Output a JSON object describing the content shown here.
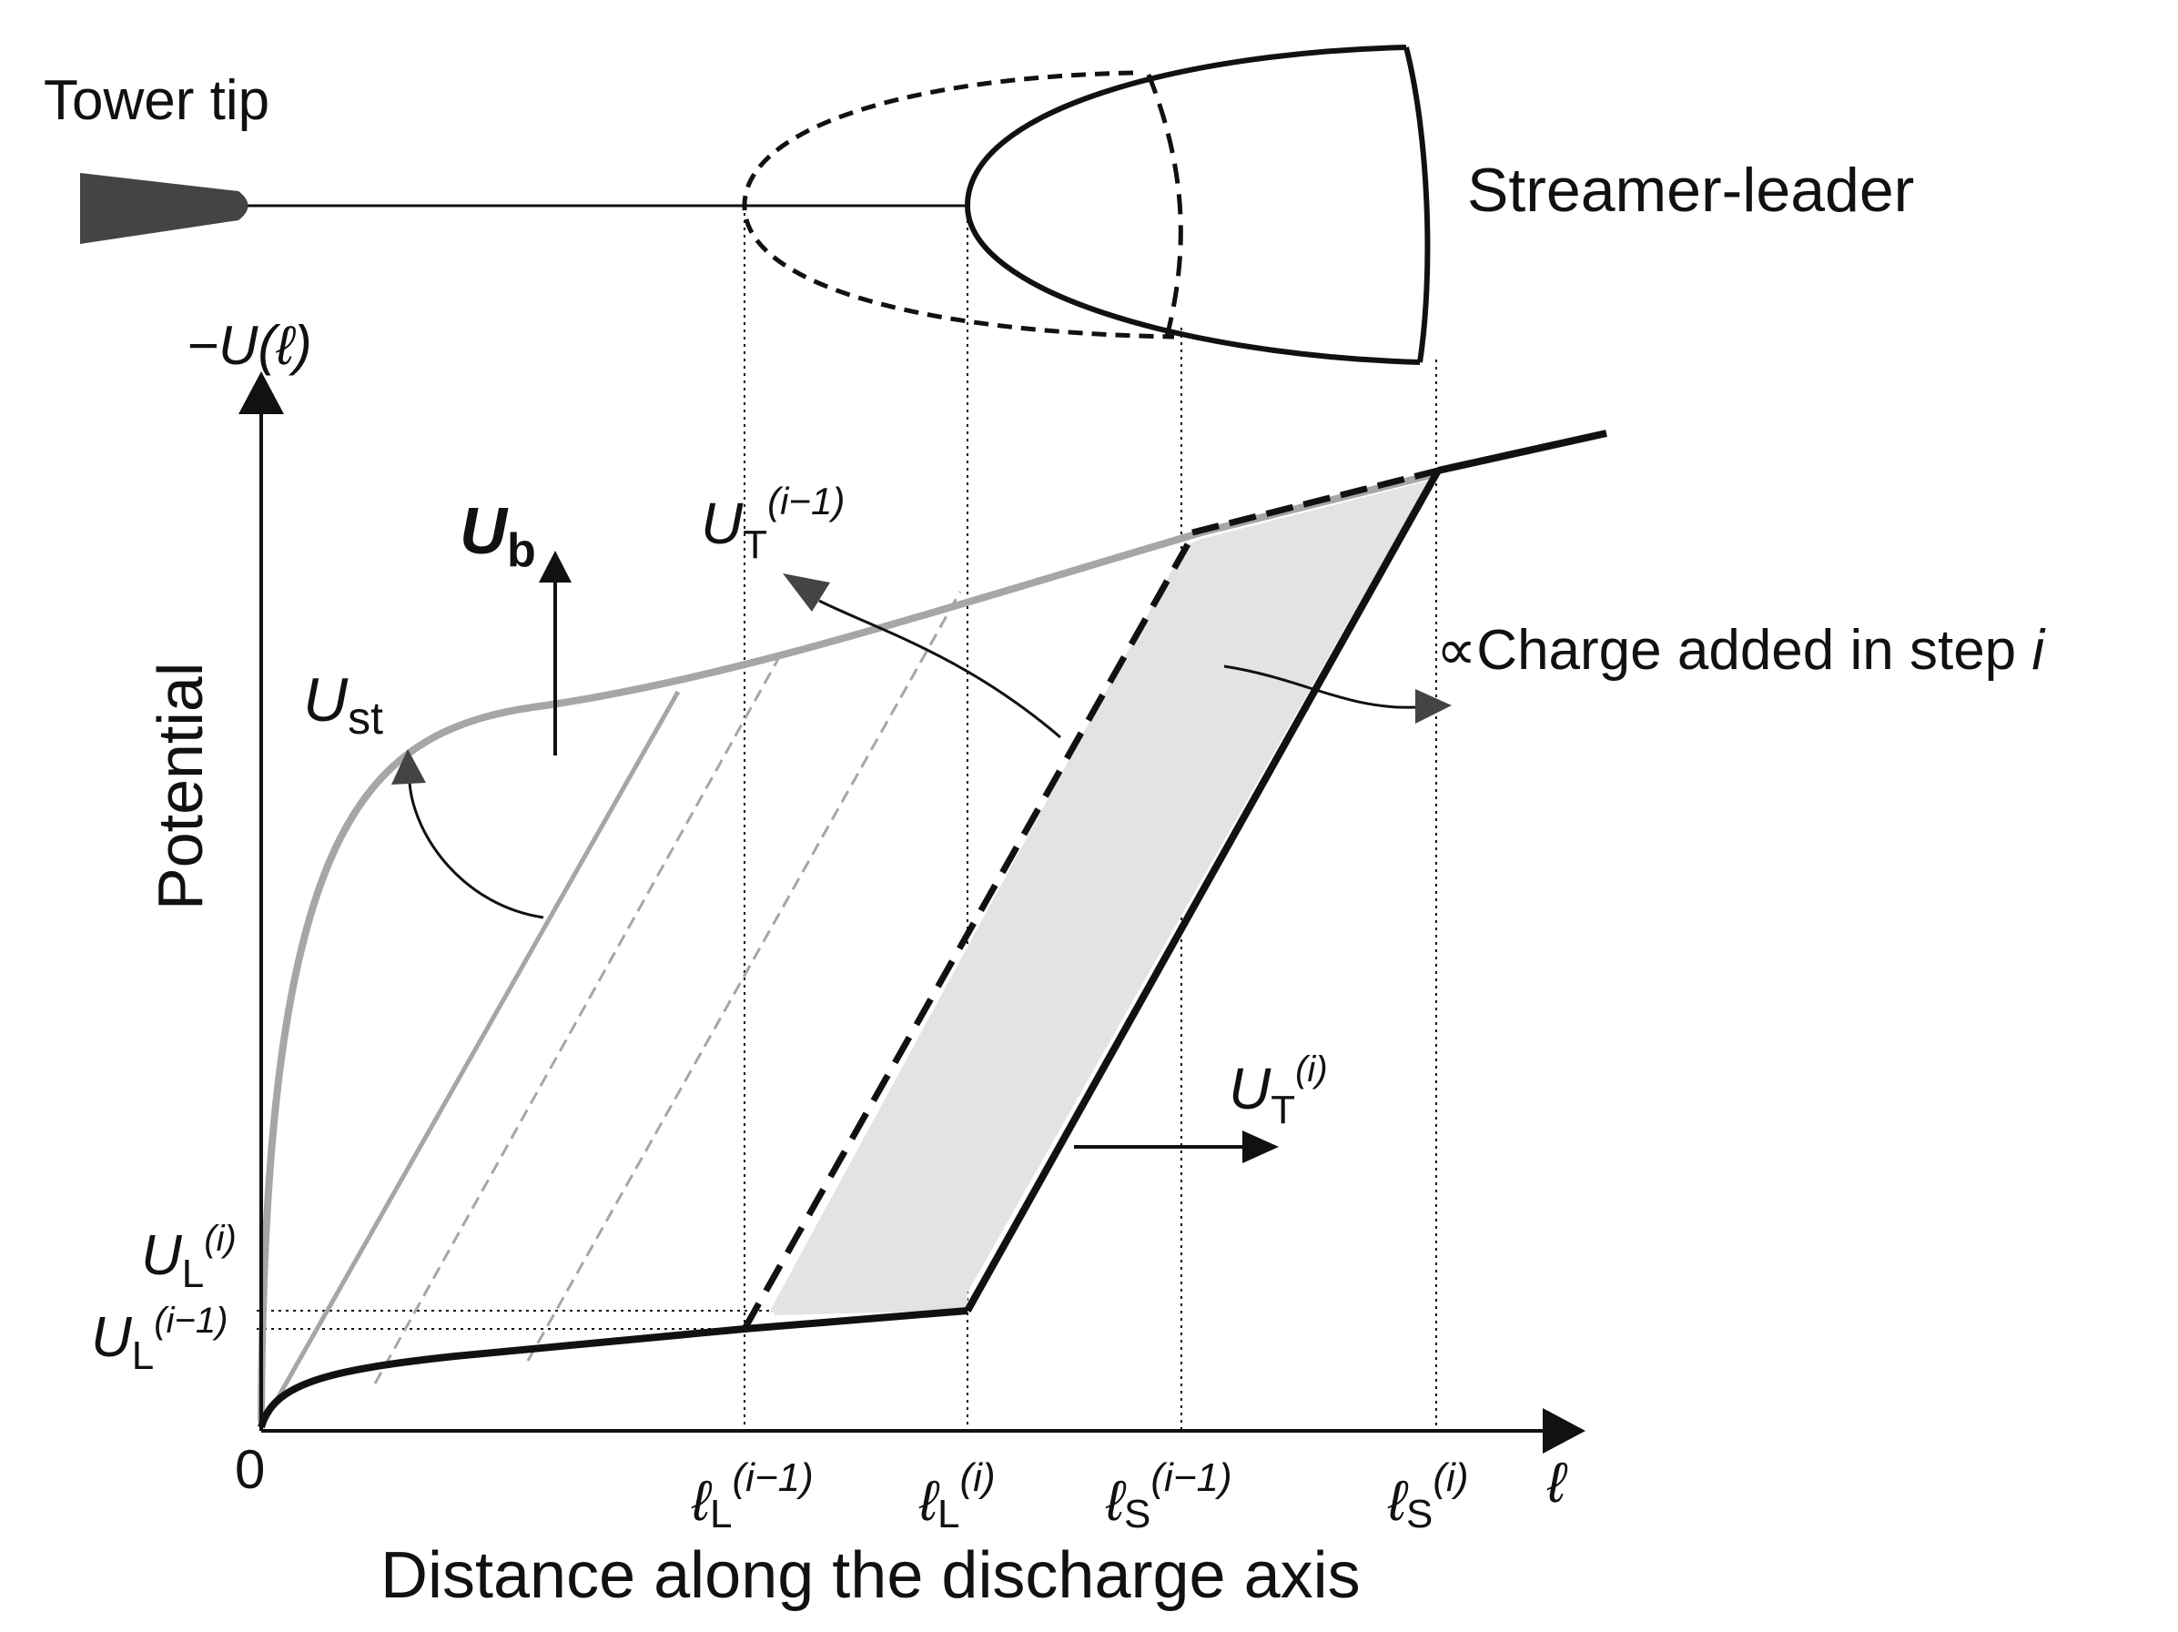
{
  "labels": {
    "tower_tip": "Tower tip",
    "streamer_leader": "Streamer-leader",
    "y_axis_symbol": "−U(ℓ)",
    "y_axis_title": "Potential",
    "x_axis_title": "Distance along the discharge axis",
    "origin": "0",
    "x_axis_symbol": "ℓ",
    "charge_annotation": "∝Charge added in step ",
    "charge_annotation_index": "i"
  },
  "curve_labels": {
    "ub": {
      "main": "U",
      "sub": "b"
    },
    "ust": {
      "main": "U",
      "sub": "st"
    },
    "ut_prev": {
      "main": "U",
      "sub": "T",
      "sup": "(i−1)"
    },
    "ut_curr": {
      "main": "U",
      "sub": "T",
      "sup": "(i)"
    }
  },
  "y_ticks": [
    {
      "main": "U",
      "sub": "L",
      "sup": "(i)"
    },
    {
      "main": "U",
      "sub": "L",
      "sup": "(i−1)"
    }
  ],
  "x_ticks": [
    {
      "main": "ℓ",
      "sub": "L",
      "sup": "(i−1)"
    },
    {
      "main": "ℓ",
      "sub": "L",
      "sup": "(i)"
    },
    {
      "main": "ℓ",
      "sub": "S",
      "sup": "(i−1)"
    },
    {
      "main": "ℓ",
      "sub": "S",
      "sup": "(i)"
    }
  ],
  "colors": {
    "ink": "#111111",
    "gray_curve": "#a6a6a6",
    "shaded_region": "#e3e3e3",
    "tower": "#444444"
  }
}
